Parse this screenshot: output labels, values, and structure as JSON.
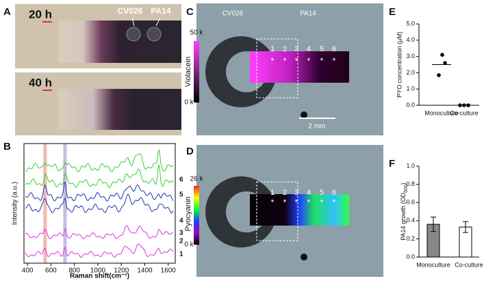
{
  "figure": {
    "panel_labels": [
      "A",
      "B",
      "C",
      "D",
      "E",
      "F"
    ],
    "panel_a": {
      "times": [
        "20 h",
        "40 h"
      ],
      "strains": [
        "CV026",
        "PA14"
      ]
    },
    "panel_c": {
      "strains": [
        "CV026",
        "PA14"
      ],
      "spots": [
        "1",
        "2",
        "3",
        "4",
        "5",
        "6"
      ],
      "marker": "*",
      "colorbar_title": "Violacein",
      "colorbar_max": "50 k",
      "colorbar_min": "0 k",
      "scale_bar": "2 mm"
    },
    "panel_d": {
      "spots": [
        "1",
        "2",
        "3",
        "4",
        "5",
        "6"
      ],
      "marker": "*",
      "colorbar_title": "Pyocyanin",
      "colorbar_max": "26 k",
      "colorbar_min": "0 k"
    }
  },
  "chart_data": [
    {
      "type": "line",
      "x_label": "Raman shift(cm⁻¹)",
      "y_label": "Intensity (a.u.)",
      "xlim": [
        370,
        1660
      ],
      "xticks": [
        400,
        600,
        800,
        1000,
        1200,
        1400,
        1600
      ],
      "trace_labels": [
        "6",
        "5",
        "4",
        "3",
        "2",
        "1"
      ]
    },
    {
      "type": "scatter",
      "y_label": "PYO concentration (µM)",
      "categories": [
        "Monoculture",
        "Co-culture"
      ],
      "values": [
        [
          3.1,
          2.6,
          1.85
        ],
        [
          0,
          0,
          0
        ]
      ],
      "means": [
        2.5,
        0
      ],
      "color": "#000000",
      "ylim": [
        0,
        5
      ],
      "yticks": [
        {
          "value": 0,
          "label": "0.0"
        },
        {
          "value": 1,
          "label": "1.0"
        },
        {
          "value": 2,
          "label": "2.0"
        },
        {
          "value": 3,
          "label": "3.0"
        },
        {
          "value": 4,
          "label": "4.0"
        },
        {
          "value": 5,
          "label": "5.0"
        }
      ]
    },
    {
      "type": "bar",
      "y_label_parts": [
        "PA14 growth (OD",
        "600",
        ")"
      ],
      "categories": [
        "Monoculture",
        "Co-culture"
      ],
      "values": [
        0.36,
        0.33
      ],
      "errors": [
        0.08,
        0.06
      ],
      "colors": [
        "#888888",
        "#ffffff"
      ],
      "ylim": [
        0,
        1
      ],
      "yticks": [
        {
          "value": 0,
          "label": "0.0"
        },
        {
          "value": 0.2,
          "label": "0.2"
        },
        {
          "value": 0.4,
          "label": "0.4"
        },
        {
          "value": 0.6,
          "label": "0.6"
        },
        {
          "value": 0.8,
          "label": "0.8"
        },
        {
          "value": 1,
          "label": "1.0"
        }
      ]
    }
  ]
}
